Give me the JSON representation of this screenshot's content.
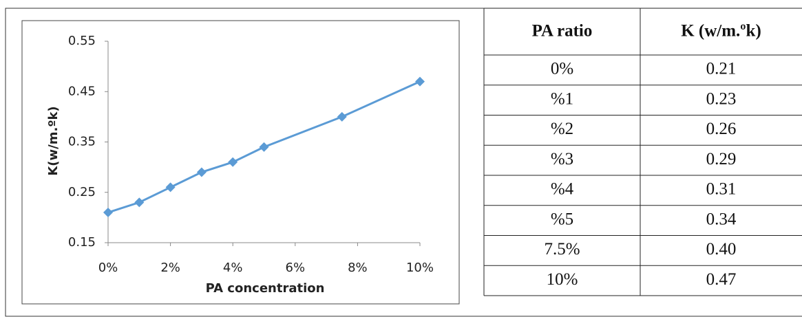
{
  "chart_data": {
    "type": "line",
    "xlabel": "PA concentration",
    "ylabel": "K(w/m.ºk)",
    "x": [
      0,
      1,
      2,
      3,
      4,
      5,
      7.5,
      10
    ],
    "series": [
      {
        "color": "#5b9bd5",
        "values": [
          0.21,
          0.23,
          0.26,
          0.29,
          0.31,
          0.34,
          0.4,
          0.47
        ]
      }
    ],
    "xlim": [
      0,
      10
    ],
    "xticks": [
      {
        "value": 0,
        "label": "0%"
      },
      {
        "value": 2,
        "label": "2%"
      },
      {
        "value": 4,
        "label": "4%"
      },
      {
        "value": 6,
        "label": "6%"
      },
      {
        "value": 8,
        "label": "8%"
      },
      {
        "value": 10,
        "label": "10%"
      }
    ],
    "ylim": [
      0.15,
      0.55
    ],
    "yticks": [
      0.15,
      0.25,
      0.35,
      0.45,
      0.55
    ],
    "grid": false
  },
  "table": {
    "header": [
      "PA ratio",
      "K (w/m.ºk)"
    ],
    "rows": [
      [
        "0%",
        "0.21"
      ],
      [
        "%1",
        "0.23"
      ],
      [
        "%2",
        "0.26"
      ],
      [
        "%3",
        "0.29"
      ],
      [
        "%4",
        "0.31"
      ],
      [
        "%5",
        "0.34"
      ],
      [
        "7.5%",
        "0.40"
      ],
      [
        "10%",
        "0.47"
      ]
    ]
  }
}
